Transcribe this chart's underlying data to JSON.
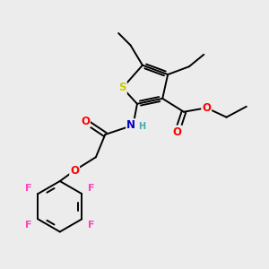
{
  "bg_color": "#ececec",
  "atom_colors": {
    "S": "#cccc00",
    "O": "#ff0000",
    "N": "#0000cc",
    "F": "#ff44bb",
    "C": "#000000",
    "H": "#44aaaa"
  },
  "bond_color": "#000000",
  "bond_width": 1.4,
  "fig_width": 3.0,
  "fig_height": 3.0,
  "dpi": 100
}
